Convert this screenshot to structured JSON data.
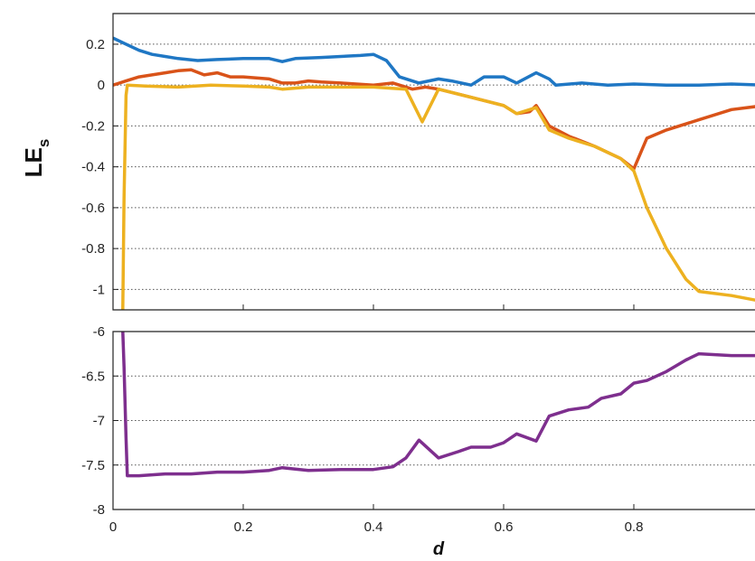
{
  "chart_data": [
    {
      "type": "line",
      "ylabel": "LE",
      "ylabel_subscript": "s",
      "xlim": [
        0,
        1
      ],
      "ylim": [
        -1.1,
        0.35
      ],
      "yticks": [
        0.2,
        0,
        -0.2,
        -0.4,
        -0.6,
        -0.8,
        -1
      ],
      "ytick_labels": [
        "0.2",
        "0",
        "-0.2",
        "-0.4",
        "-0.6",
        "-0.8",
        "-1"
      ],
      "grid": "horizontal-dotted",
      "series": [
        {
          "color": "#1f77c4",
          "points": [
            [
              0,
              0.23
            ],
            [
              0.02,
              0.2
            ],
            [
              0.04,
              0.17
            ],
            [
              0.06,
              0.15
            ],
            [
              0.08,
              0.14
            ],
            [
              0.1,
              0.13
            ],
            [
              0.13,
              0.12
            ],
            [
              0.16,
              0.125
            ],
            [
              0.2,
              0.13
            ],
            [
              0.24,
              0.13
            ],
            [
              0.26,
              0.115
            ],
            [
              0.28,
              0.13
            ],
            [
              0.32,
              0.135
            ],
            [
              0.35,
              0.14
            ],
            [
              0.38,
              0.145
            ],
            [
              0.4,
              0.15
            ],
            [
              0.42,
              0.12
            ],
            [
              0.44,
              0.04
            ],
            [
              0.47,
              0.01
            ],
            [
              0.5,
              0.03
            ],
            [
              0.52,
              0.02
            ],
            [
              0.55,
              0.0
            ],
            [
              0.57,
              0.04
            ],
            [
              0.6,
              0.04
            ],
            [
              0.62,
              0.01
            ],
            [
              0.65,
              0.06
            ],
            [
              0.67,
              0.03
            ],
            [
              0.68,
              0.0
            ],
            [
              0.72,
              0.01
            ],
            [
              0.76,
              0.0
            ],
            [
              0.8,
              0.005
            ],
            [
              0.85,
              0.0
            ],
            [
              0.9,
              0.0
            ],
            [
              0.95,
              0.005
            ],
            [
              1.0,
              0.0
            ]
          ]
        },
        {
          "color": "#d95319",
          "points": [
            [
              0,
              0.0
            ],
            [
              0.02,
              0.02
            ],
            [
              0.04,
              0.04
            ],
            [
              0.06,
              0.05
            ],
            [
              0.08,
              0.06
            ],
            [
              0.1,
              0.07
            ],
            [
              0.12,
              0.075
            ],
            [
              0.14,
              0.05
            ],
            [
              0.16,
              0.06
            ],
            [
              0.18,
              0.04
            ],
            [
              0.2,
              0.04
            ],
            [
              0.24,
              0.03
            ],
            [
              0.26,
              0.01
            ],
            [
              0.28,
              0.01
            ],
            [
              0.3,
              0.02
            ],
            [
              0.32,
              0.015
            ],
            [
              0.35,
              0.01
            ],
            [
              0.4,
              0.0
            ],
            [
              0.43,
              0.01
            ],
            [
              0.46,
              -0.02
            ],
            [
              0.48,
              -0.01
            ],
            [
              0.5,
              -0.02
            ],
            [
              0.55,
              -0.06
            ],
            [
              0.6,
              -0.1
            ],
            [
              0.62,
              -0.14
            ],
            [
              0.64,
              -0.13
            ],
            [
              0.65,
              -0.1
            ],
            [
              0.67,
              -0.2
            ],
            [
              0.7,
              -0.25
            ],
            [
              0.74,
              -0.3
            ],
            [
              0.78,
              -0.36
            ],
            [
              0.8,
              -0.41
            ],
            [
              0.82,
              -0.26
            ],
            [
              0.85,
              -0.22
            ],
            [
              0.9,
              -0.17
            ],
            [
              0.95,
              -0.12
            ],
            [
              1.0,
              -0.1
            ]
          ]
        },
        {
          "color": "#edb120",
          "points": [
            [
              0.015,
              -1.1
            ],
            [
              0.017,
              -0.55
            ],
            [
              0.02,
              -0.05
            ],
            [
              0.022,
              0.0
            ],
            [
              0.05,
              -0.005
            ],
            [
              0.1,
              -0.01
            ],
            [
              0.15,
              0.0
            ],
            [
              0.2,
              -0.005
            ],
            [
              0.24,
              -0.01
            ],
            [
              0.26,
              -0.02
            ],
            [
              0.3,
              -0.01
            ],
            [
              0.35,
              -0.01
            ],
            [
              0.4,
              -0.01
            ],
            [
              0.45,
              -0.02
            ],
            [
              0.475,
              -0.18
            ],
            [
              0.5,
              -0.02
            ],
            [
              0.55,
              -0.06
            ],
            [
              0.6,
              -0.1
            ],
            [
              0.62,
              -0.14
            ],
            [
              0.64,
              -0.12
            ],
            [
              0.65,
              -0.11
            ],
            [
              0.67,
              -0.22
            ],
            [
              0.7,
              -0.26
            ],
            [
              0.74,
              -0.3
            ],
            [
              0.78,
              -0.36
            ],
            [
              0.8,
              -0.42
            ],
            [
              0.82,
              -0.6
            ],
            [
              0.85,
              -0.8
            ],
            [
              0.88,
              -0.95
            ],
            [
              0.9,
              -1.01
            ],
            [
              0.95,
              -1.03
            ],
            [
              1.0,
              -1.06
            ]
          ]
        }
      ]
    },
    {
      "type": "line",
      "xlabel": "d",
      "xlim": [
        0,
        1
      ],
      "ylim": [
        -8,
        -6
      ],
      "xticks": [
        0,
        0.2,
        0.4,
        0.6,
        0.8
      ],
      "xtick_labels": [
        "0",
        "0.2",
        "0.4",
        "0.6",
        "0.8"
      ],
      "yticks": [
        -6,
        -6.5,
        -7,
        -7.5,
        -8
      ],
      "ytick_labels": [
        "-6",
        "-6.5",
        "-7",
        "-7.5",
        "-8"
      ],
      "grid": "horizontal-dotted",
      "series": [
        {
          "color": "#7e2f8e",
          "points": [
            [
              0.015,
              -6.0
            ],
            [
              0.017,
              -6.4
            ],
            [
              0.02,
              -7.2
            ],
            [
              0.022,
              -7.62
            ],
            [
              0.04,
              -7.62
            ],
            [
              0.08,
              -7.6
            ],
            [
              0.12,
              -7.6
            ],
            [
              0.16,
              -7.58
            ],
            [
              0.2,
              -7.58
            ],
            [
              0.24,
              -7.56
            ],
            [
              0.26,
              -7.53
            ],
            [
              0.3,
              -7.56
            ],
            [
              0.35,
              -7.55
            ],
            [
              0.4,
              -7.55
            ],
            [
              0.43,
              -7.52
            ],
            [
              0.45,
              -7.42
            ],
            [
              0.47,
              -7.22
            ],
            [
              0.5,
              -7.42
            ],
            [
              0.53,
              -7.35
            ],
            [
              0.55,
              -7.3
            ],
            [
              0.58,
              -7.3
            ],
            [
              0.6,
              -7.25
            ],
            [
              0.62,
              -7.15
            ],
            [
              0.65,
              -7.23
            ],
            [
              0.67,
              -6.95
            ],
            [
              0.7,
              -6.88
            ],
            [
              0.73,
              -6.85
            ],
            [
              0.75,
              -6.75
            ],
            [
              0.78,
              -6.7
            ],
            [
              0.8,
              -6.58
            ],
            [
              0.82,
              -6.55
            ],
            [
              0.85,
              -6.45
            ],
            [
              0.88,
              -6.32
            ],
            [
              0.9,
              -6.25
            ],
            [
              0.95,
              -6.27
            ],
            [
              1.0,
              -6.27
            ]
          ]
        }
      ]
    }
  ]
}
